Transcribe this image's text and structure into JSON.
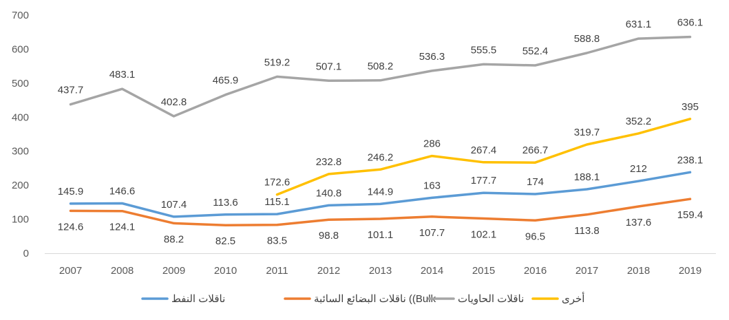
{
  "chart_data": {
    "type": "line",
    "title": "",
    "xlabel": "",
    "ylabel": "",
    "ylim": [
      0,
      700
    ],
    "yticks": [
      0,
      100,
      200,
      300,
      400,
      500,
      600,
      700
    ],
    "categories": [
      "2007",
      "2008",
      "2009",
      "2010",
      "2011",
      "2012",
      "2013",
      "2014",
      "2015",
      "2016",
      "2017",
      "2018",
      "2019"
    ],
    "legend_position": "bottom",
    "series": [
      {
        "name": "ناقلات النفط",
        "color": "#5B9BD5",
        "values": [
          145.9,
          146.6,
          107.4,
          113.6,
          115.1,
          140.8,
          144.9,
          163,
          177.7,
          174,
          188.1,
          212,
          238.1
        ],
        "labels": [
          "145.9",
          "146.6",
          "107.4",
          "113.6",
          "115.1",
          "140.8",
          "144.9",
          "163",
          "177.7",
          "174",
          "188.1",
          "212",
          "238.1"
        ]
      },
      {
        "name": "ناقلات البضائع السائبة ((Bulk",
        "color": "#ED7D31",
        "values": [
          124.6,
          124.1,
          88.2,
          82.5,
          83.5,
          98.8,
          101.1,
          107.7,
          102.1,
          96.5,
          113.8,
          137.6,
          159.4
        ],
        "labels": [
          "124.6",
          "124.1",
          "88.2",
          "82.5",
          "83.5",
          "98.8",
          "101.1",
          "107.7",
          "102.1",
          "96.5",
          "113.8",
          "137.6",
          "159.4"
        ]
      },
      {
        "name": "ناقلات الحاويات",
        "color": "#A5A5A5",
        "values": [
          437.7,
          483.1,
          402.8,
          465.9,
          519.2,
          507.1,
          508.2,
          536.3,
          555.5,
          552.4,
          588.8,
          631.1,
          636.1
        ],
        "labels": [
          "437.7",
          "483.1",
          "402.8",
          "465.9",
          "519.2",
          "507.1",
          "508.2",
          "536.3",
          "555.5",
          "552.4",
          "588.8",
          "631.1",
          "636.1"
        ]
      },
      {
        "name": "أخرى",
        "color": "#FFC000",
        "values": [
          null,
          null,
          null,
          null,
          172.6,
          232.8,
          246.2,
          286,
          267.4,
          266.7,
          319.7,
          352.2,
          395
        ],
        "labels": [
          null,
          null,
          null,
          null,
          "172.6",
          "232.8",
          "246.2",
          "286",
          "267.4",
          "266.7",
          "319.7",
          "352.2",
          "395"
        ]
      }
    ]
  }
}
